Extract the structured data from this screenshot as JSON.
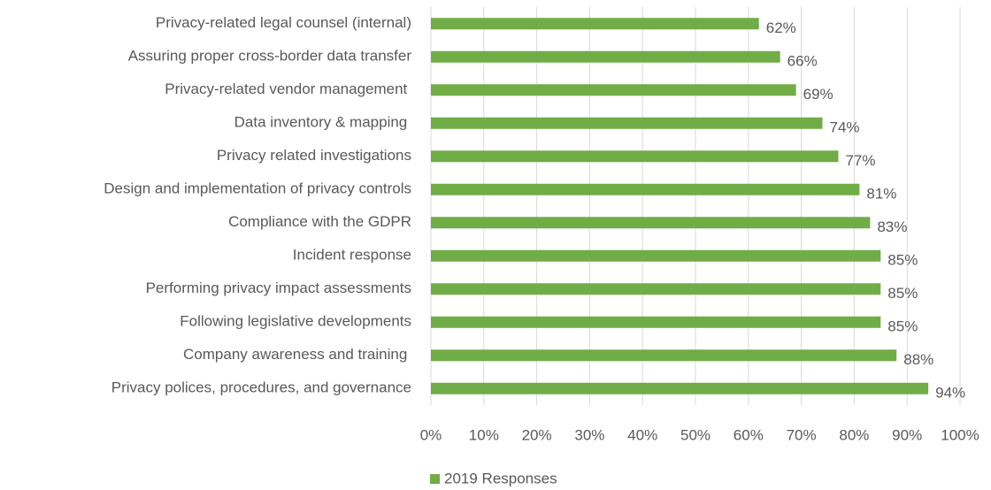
{
  "chart_data": {
    "type": "bar",
    "orientation": "horizontal",
    "categories": [
      "Privacy-related legal counsel (internal)",
      "Assuring proper cross-border data transfer",
      "Privacy-related vendor management ",
      "Data inventory & mapping ",
      "Privacy related investigations",
      "Design and implementation of privacy controls",
      "Compliance with the GDPR",
      "Incident response",
      "Performing privacy impact assessments",
      "Following legislative developments",
      "Company awareness and training ",
      "Privacy polices, procedures, and governance"
    ],
    "series": [
      {
        "name": "2019 Responses",
        "color": "#70ad47",
        "values": [
          62,
          66,
          69,
          74,
          77,
          81,
          83,
          85,
          85,
          85,
          88,
          94
        ],
        "value_labels": [
          "62%",
          "66%",
          "69%",
          "74%",
          "77%",
          "81%",
          "83%",
          "85%",
          "85%",
          "85%",
          "88%",
          "94%"
        ]
      }
    ],
    "xlim": [
      0,
      100
    ],
    "xticks": [
      {
        "value": 0,
        "label": "0%"
      },
      {
        "value": 10,
        "label": "10%"
      },
      {
        "value": 20,
        "label": "20%"
      },
      {
        "value": 30,
        "label": "30%"
      },
      {
        "value": 40,
        "label": "40%"
      },
      {
        "value": 50,
        "label": "50%"
      },
      {
        "value": 60,
        "label": "60%"
      },
      {
        "value": 70,
        "label": "70%"
      },
      {
        "value": 80,
        "label": "80%"
      },
      {
        "value": 90,
        "label": "90%"
      },
      {
        "value": 100,
        "label": "100%"
      }
    ],
    "grid": true,
    "legend": "bottom"
  }
}
